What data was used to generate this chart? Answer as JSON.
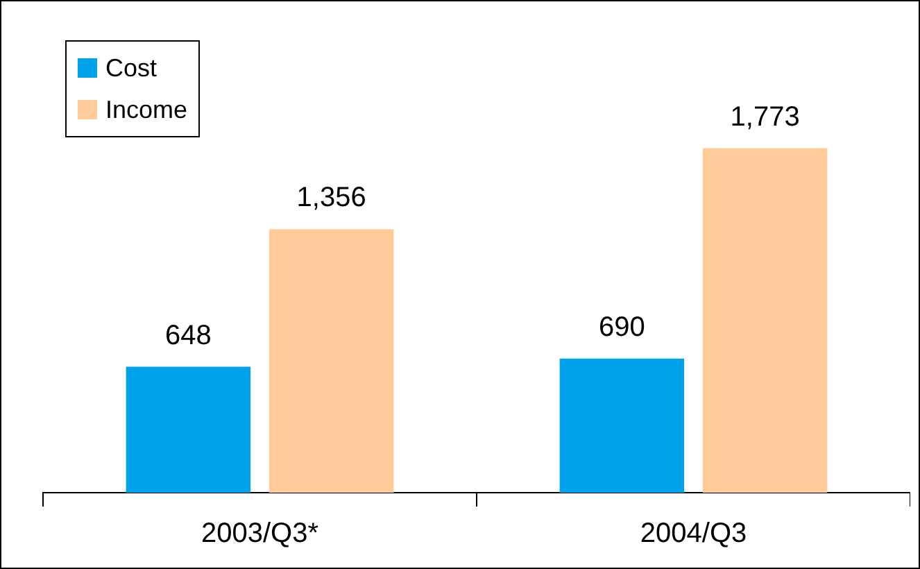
{
  "chart_data": {
    "type": "bar",
    "categories": [
      "2003/Q3*",
      "2004/Q3"
    ],
    "series": [
      {
        "name": "Cost",
        "color": "#00a2ea",
        "values": [
          648,
          690
        ],
        "value_labels": [
          "648",
          "690"
        ]
      },
      {
        "name": "Income",
        "color": "#ffcc99",
        "values": [
          1356,
          1773
        ],
        "value_labels": [
          "1,356",
          "1,773"
        ]
      }
    ],
    "legend": "top left",
    "grid": false
  }
}
